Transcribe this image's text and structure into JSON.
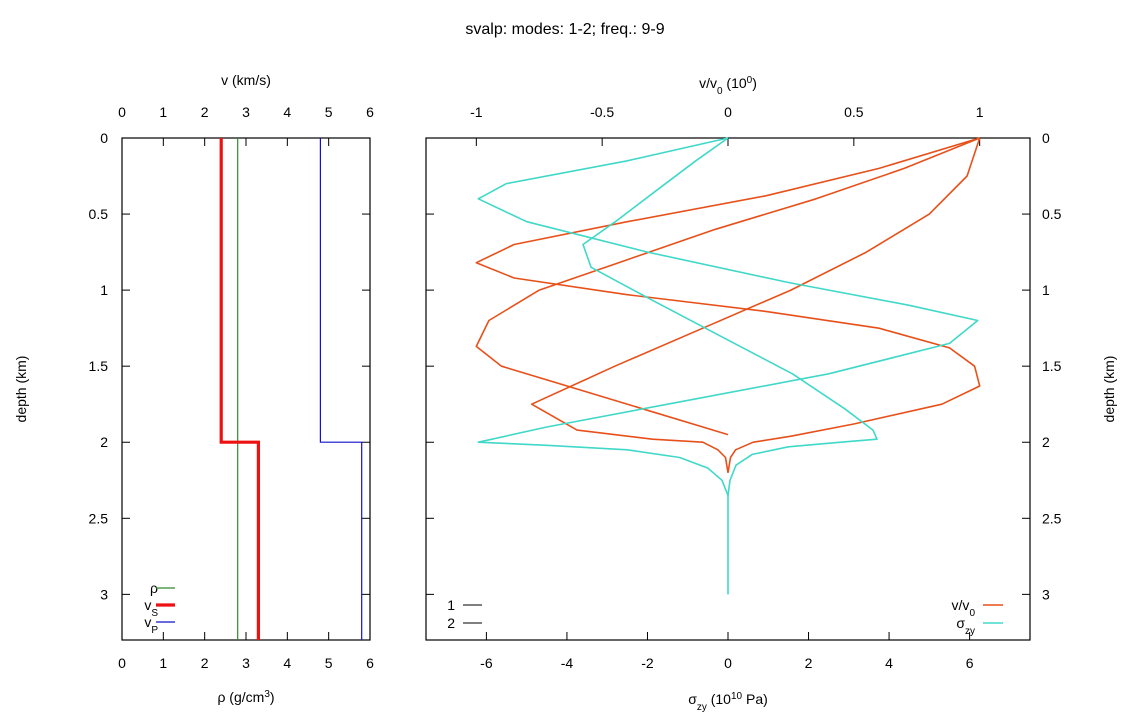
{
  "chart_data": {
    "type": "line",
    "title": "svalp: modes: 1-2; freq.: 9-9",
    "depth_label": "depth (km)",
    "depth_range": [
      3.3,
      0
    ],
    "depth_ticks": [
      "0",
      "0.5",
      "1",
      "1.5",
      "2",
      "2.5",
      "3"
    ],
    "grid": false,
    "model_panel": {
      "top_axis_label": "v (km/s)",
      "top_range": [
        0,
        6
      ],
      "top_ticks": [
        "0",
        "1",
        "2",
        "3",
        "4",
        "5",
        "6"
      ],
      "bottom_axis_label": {
        "base": "ρ (g/cm",
        "sup": "3",
        "tail": ")"
      },
      "bottom_range": [
        0,
        6
      ],
      "bottom_ticks": [
        "0",
        "1",
        "2",
        "3",
        "4",
        "5",
        "6"
      ],
      "legend_placement": "bottom-left",
      "series": [
        {
          "name": "ρ",
          "legend_main": "ρ",
          "legend_sub": "",
          "color": "#2e8b2e",
          "width": 1.2,
          "points": [
            [
              2.8,
              0
            ],
            [
              2.8,
              3.3
            ]
          ]
        },
        {
          "name": "vS",
          "legend_main": "v",
          "legend_sub": "S",
          "color": "#ee1111",
          "width": 3.2,
          "points": [
            [
              2.4,
              0
            ],
            [
              2.4,
              2.0
            ],
            [
              3.3,
              2.0
            ],
            [
              3.3,
              3.3
            ]
          ]
        },
        {
          "name": "vP",
          "legend_main": "v",
          "legend_sub": "P",
          "color": "#1111cc",
          "width": 1.2,
          "points": [
            [
              4.8,
              0
            ],
            [
              4.8,
              2.0
            ],
            [
              5.8,
              2.0
            ],
            [
              5.8,
              3.3
            ]
          ]
        }
      ]
    },
    "mode_panel": {
      "top_axis_label": {
        "base": "v/v",
        "sub": "0",
        "mid": " (10",
        "sup": "0",
        "tail": ")"
      },
      "top_range": [
        -1.2,
        1.2
      ],
      "top_ticks": [
        -1,
        -0.5,
        0,
        0.5,
        1
      ],
      "top_tick_labels": [
        "-1",
        "-0.5",
        "0",
        "0.5",
        "1"
      ],
      "bottom_axis_label": {
        "base": "σ",
        "sub": "zy",
        "mid": " (10",
        "sup": "10",
        "tail": " Pa)"
      },
      "bottom_range": [
        -7.5,
        7.5
      ],
      "bottom_ticks": [
        -6,
        -4,
        -2,
        0,
        2,
        4,
        6
      ],
      "bottom_tick_labels": [
        "-6",
        "-4",
        "-2",
        "0",
        "2",
        "4",
        "6"
      ],
      "mode_legend": {
        "placement": "bottom-left",
        "entries": [
          "1",
          "2"
        ]
      },
      "legend_placement": "bottom-right",
      "curves": [
        {
          "name": "v/v0 mode 1",
          "legend_main": "v/v",
          "legend_sub": "0",
          "color": "#e8501a",
          "width": 1.6,
          "points": [
            [
              1.0,
              0
            ],
            [
              0.95,
              0.25
            ],
            [
              0.8,
              0.5
            ],
            [
              0.55,
              0.75
            ],
            [
              0.25,
              1.0
            ],
            [
              -0.1,
              1.25
            ],
            [
              -0.45,
              1.5
            ],
            [
              -0.78,
              1.75
            ],
            [
              -0.6,
              1.92
            ],
            [
              -0.3,
              1.98
            ],
            [
              -0.1,
              2.0
            ],
            [
              -0.04,
              2.05
            ],
            [
              -0.01,
              2.1
            ],
            [
              0,
              2.2
            ]
          ]
        },
        {
          "name": "v/v0 mode 2",
          "legend_main": "",
          "legend_sub": "",
          "color": "#e8501a",
          "width": 1.6,
          "points": [
            [
              1.0,
              0
            ],
            [
              0.6,
              0.2
            ],
            [
              0.15,
              0.38
            ],
            [
              -0.4,
              0.55
            ],
            [
              -0.85,
              0.7
            ],
            [
              -1.0,
              0.82
            ],
            [
              -0.85,
              0.92
            ],
            [
              -0.4,
              1.03
            ],
            [
              0.15,
              1.14
            ],
            [
              0.6,
              1.25
            ],
            [
              0.88,
              1.38
            ],
            [
              0.98,
              1.5
            ],
            [
              1.0,
              1.63
            ],
            [
              0.85,
              1.75
            ],
            [
              0.5,
              1.88
            ],
            [
              0.25,
              1.96
            ],
            [
              0.1,
              2.0
            ],
            [
              0.03,
              2.05
            ],
            [
              0.01,
              2.1
            ],
            [
              0,
              2.2
            ]
          ]
        },
        {
          "name": "v/v0 mode 1 low",
          "legend_main": "",
          "legend_sub": "",
          "color": "#e8501a",
          "width": 1.6,
          "points": [
            [
              1.0,
              0
            ],
            [
              0.7,
              0.2
            ],
            [
              0.35,
              0.4
            ],
            [
              -0.05,
              0.6
            ],
            [
              -0.4,
              0.8
            ],
            [
              -0.75,
              1.0
            ],
            [
              -0.95,
              1.2
            ],
            [
              -1.0,
              1.37
            ],
            [
              -0.9,
              1.5
            ],
            [
              -0.6,
              1.65
            ],
            [
              -0.3,
              1.8
            ],
            [
              -0.1,
              1.9
            ],
            [
              0,
              1.95
            ]
          ]
        },
        {
          "name": "σzy mode 1",
          "legend_main": "σ",
          "legend_sub": "zy",
          "color": "#40d8c8",
          "width": 1.6,
          "points": [
            [
              0,
              0
            ],
            [
              -0.8,
              0.15
            ],
            [
              -1.8,
              0.35
            ],
            [
              -2.8,
              0.55
            ],
            [
              -3.6,
              0.7
            ],
            [
              -3.4,
              0.85
            ],
            [
              -2.0,
              1.05
            ],
            [
              -0.2,
              1.3
            ],
            [
              1.6,
              1.55
            ],
            [
              2.9,
              1.78
            ],
            [
              3.6,
              1.92
            ],
            [
              3.7,
              1.98
            ],
            [
              2.8,
              2.0
            ],
            [
              1.5,
              2.03
            ],
            [
              0.6,
              2.08
            ],
            [
              0.2,
              2.15
            ],
            [
              0.05,
              2.25
            ],
            [
              0,
              2.35
            ],
            [
              0,
              3.0
            ]
          ]
        },
        {
          "name": "σzy mode 2",
          "legend_main": "",
          "legend_sub": "",
          "color": "#40d8c8",
          "width": 1.6,
          "points": [
            [
              0,
              0
            ],
            [
              -2.5,
              0.15
            ],
            [
              -5.5,
              0.3
            ],
            [
              -6.2,
              0.4
            ],
            [
              -5.0,
              0.55
            ],
            [
              -2.0,
              0.75
            ],
            [
              1.5,
              0.95
            ],
            [
              4.5,
              1.1
            ],
            [
              6.2,
              1.2
            ],
            [
              5.5,
              1.35
            ],
            [
              2.5,
              1.55
            ],
            [
              -1.5,
              1.75
            ],
            [
              -4.5,
              1.9
            ],
            [
              -6.2,
              2.0
            ],
            [
              -4.5,
              2.02
            ],
            [
              -2.5,
              2.05
            ],
            [
              -1.2,
              2.1
            ],
            [
              -0.5,
              2.17
            ],
            [
              -0.15,
              2.25
            ],
            [
              0,
              2.35
            ]
          ]
        }
      ]
    }
  }
}
